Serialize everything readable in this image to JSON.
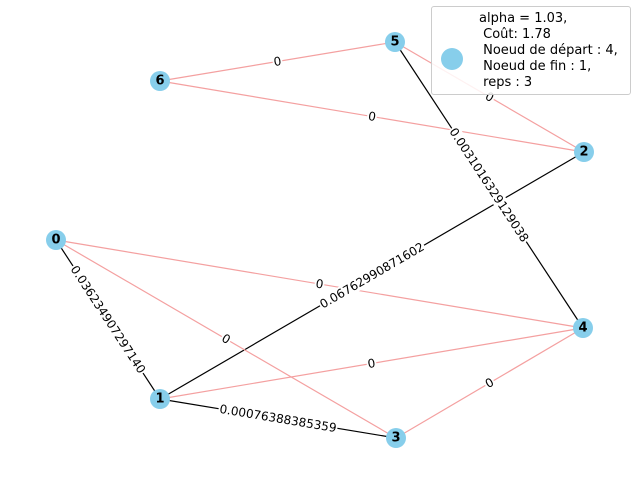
{
  "graph": {
    "nodes": [
      {
        "id": "0",
        "label": "0"
      },
      {
        "id": "1",
        "label": "1"
      },
      {
        "id": "2",
        "label": "2"
      },
      {
        "id": "3",
        "label": "3"
      },
      {
        "id": "4",
        "label": "4"
      },
      {
        "id": "5",
        "label": "5"
      },
      {
        "id": "6",
        "label": "6"
      }
    ],
    "edges": [
      {
        "source": "6",
        "target": "5",
        "label": "0",
        "kind": "other"
      },
      {
        "source": "6",
        "target": "2",
        "label": "0",
        "kind": "other"
      },
      {
        "source": "5",
        "target": "2",
        "label": "0",
        "kind": "other"
      },
      {
        "source": "5",
        "target": "4",
        "label": "0.0031016329129038",
        "kind": "path"
      },
      {
        "source": "2",
        "target": "1",
        "label": "0.06762990871602",
        "kind": "path"
      },
      {
        "source": "0",
        "target": "4",
        "label": "0",
        "kind": "other"
      },
      {
        "source": "0",
        "target": "3",
        "label": "0",
        "kind": "other"
      },
      {
        "source": "0",
        "target": "1",
        "label": "0.036234907297140",
        "kind": "path"
      },
      {
        "source": "1",
        "target": "4",
        "label": "0",
        "kind": "other"
      },
      {
        "source": "1",
        "target": "3",
        "label": "0.00076388385359",
        "kind": "path"
      },
      {
        "source": "3",
        "target": "4",
        "label": "0",
        "kind": "other"
      }
    ]
  },
  "legend": {
    "text": "alpha = 1.03,\n Coût: 1.78\n Noeud de départ : 4,\n Noeud de fin : 1,\n reps : 3"
  },
  "colors": {
    "node": "#87ceeb",
    "path_edge": "#000000",
    "other_edge": "#f4a0a0"
  }
}
